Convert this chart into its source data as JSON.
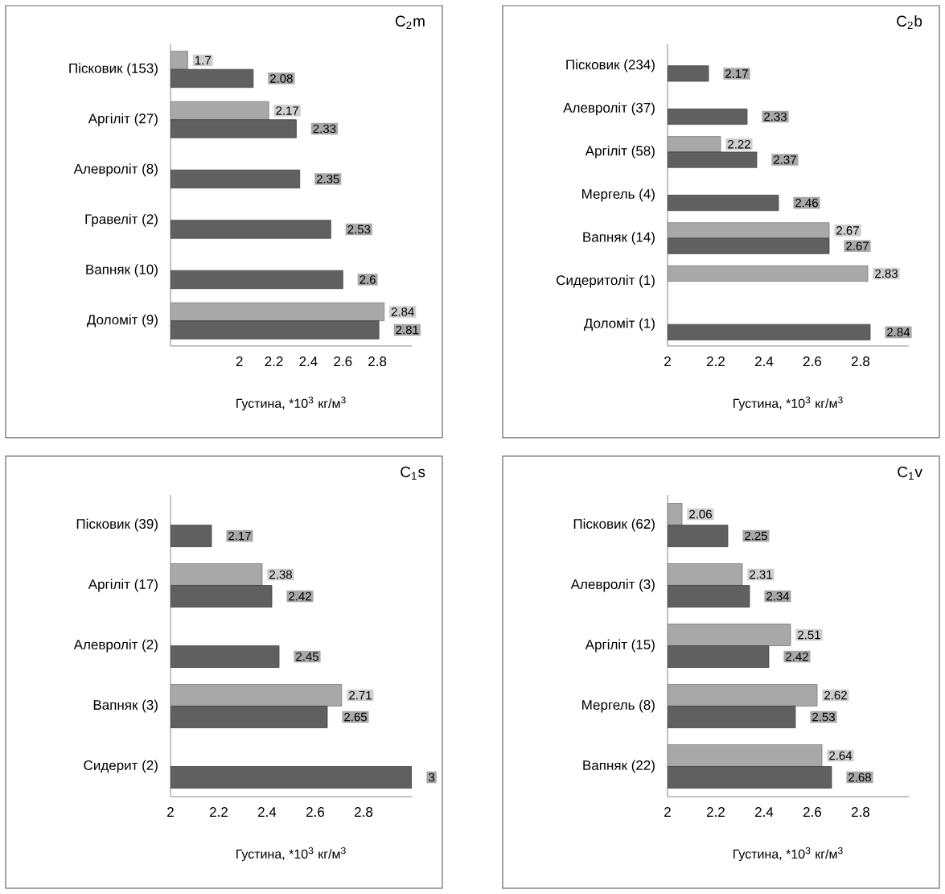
{
  "chart_data": [
    {
      "type": "bar",
      "orientation": "horizontal",
      "title": "C$_{2}$m",
      "xlabel": "Густина, *10$^{3}$ кг/м$^{3}$",
      "categories": [
        "Пісковик (153)",
        "Аргіліт (27)",
        "Алевроліт (8)",
        "Гравеліт (2)",
        "Вапняк (10)",
        "Доломіт (9)"
      ],
      "series": [
        {
          "color": "#a8a8a8",
          "values": [
            1.7,
            2.17,
            null,
            null,
            null,
            2.84
          ]
        },
        {
          "color": "#606060",
          "values": [
            2.08,
            2.33,
            2.35,
            2.53,
            2.6,
            2.81
          ]
        }
      ],
      "xlim": [
        1.6,
        3
      ],
      "xticks": [
        2,
        2.2,
        2.4,
        2.6,
        2.8
      ],
      "data_labels": true
    },
    {
      "type": "bar",
      "orientation": "horizontal",
      "title": "C$_{2}$b",
      "xlabel": "Густина, *10$^{3}$ кг/м$^{3}$",
      "categories": [
        "Пісковик (234)",
        "Алевроліт (37)",
        "Аргіліт (58)",
        "Мергель (4)",
        "Вапняк (14)",
        "Сидеритоліт (1)",
        "Доломіт (1)"
      ],
      "series": [
        {
          "color": "#a8a8a8",
          "values": [
            null,
            null,
            2.22,
            null,
            2.67,
            2.83,
            null
          ]
        },
        {
          "color": "#606060",
          "values": [
            2.17,
            2.33,
            2.37,
            2.46,
            2.67,
            null,
            2.84
          ]
        }
      ],
      "xlim": [
        2,
        3
      ],
      "xticks": [
        2,
        2.2,
        2.4,
        2.6,
        2.8
      ],
      "data_labels": true
    },
    {
      "type": "bar",
      "orientation": "horizontal",
      "title": "C$_{1}$s",
      "xlabel": "Густина, *10$^{3}$ кг/м$^{3}$",
      "categories": [
        "Пісковик (39)",
        "Аргіліт (17)",
        "Алевроліт (2)",
        "Вапняк (3)",
        "Сидерит (2)"
      ],
      "series": [
        {
          "color": "#a8a8a8",
          "values": [
            null,
            2.38,
            null,
            2.71,
            null
          ]
        },
        {
          "color": "#606060",
          "values": [
            2.17,
            2.42,
            2.45,
            2.65,
            3
          ]
        }
      ],
      "xlim": [
        2,
        3
      ],
      "xticks": [
        2,
        2.2,
        2.4,
        2.6,
        2.8
      ],
      "data_labels": true
    },
    {
      "type": "bar",
      "orientation": "horizontal",
      "title": "C$_{1}$v",
      "xlabel": "Густина, *10$^{3}$ кг/м$^{3}$",
      "categories": [
        "Пісковик (62)",
        "Алевроліт (3)",
        "Аргіліт (15)",
        "Мергель (8)",
        "Вапняк (22)"
      ],
      "series": [
        {
          "color": "#a8a8a8",
          "values": [
            2.06,
            2.31,
            2.51,
            2.62,
            2.64
          ]
        },
        {
          "color": "#606060",
          "values": [
            2.25,
            2.34,
            2.42,
            2.53,
            2.68
          ]
        }
      ],
      "xlim": [
        2,
        3
      ],
      "xticks": [
        2,
        2.2,
        2.4,
        2.6,
        2.8
      ],
      "data_labels": true
    }
  ]
}
